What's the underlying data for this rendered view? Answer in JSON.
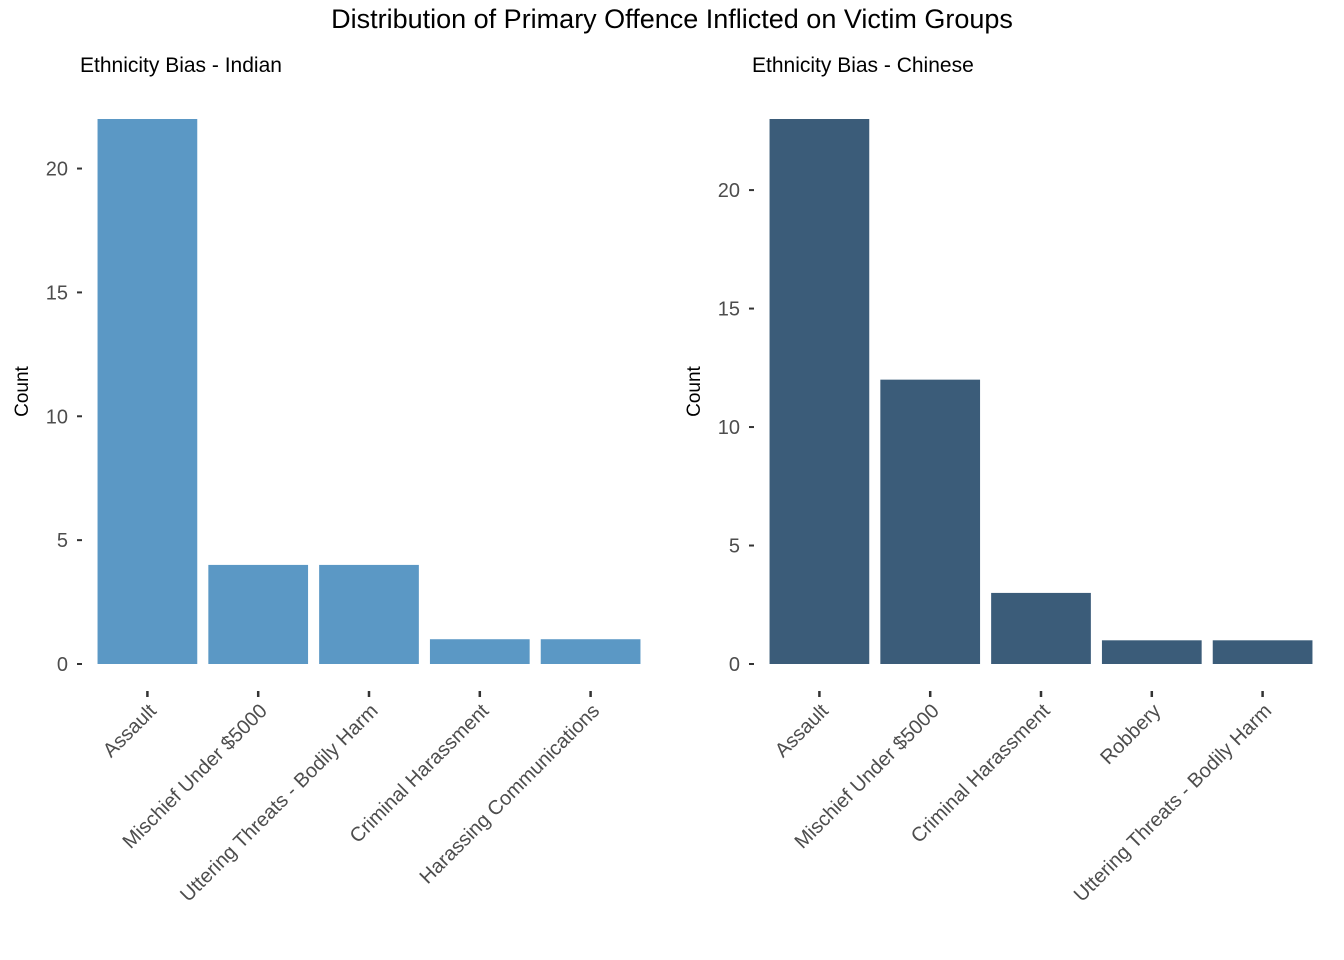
{
  "title": "Distribution of Primary Offence Inflicted on Victim Groups",
  "chart_data": [
    {
      "type": "bar",
      "title": "Ethnicity Bias - Indian",
      "xlabel": "",
      "ylabel": "Count",
      "categories": [
        "Assault",
        "Mischief Under $5000",
        "Uttering Threats - Bodily Harm",
        "Criminal Harassment",
        "Harassing Communications"
      ],
      "values": [
        22,
        4,
        4,
        1,
        1
      ],
      "ylim": [
        0,
        22
      ],
      "yticks": [
        0,
        5,
        10,
        15,
        20
      ],
      "color": "#5b98c5",
      "grid": false
    },
    {
      "type": "bar",
      "title": "Ethnicity Bias - Chinese",
      "xlabel": "",
      "ylabel": "Count",
      "categories": [
        "Assault",
        "Mischief Under $5000",
        "Criminal Harassment",
        "Robbery",
        "Uttering Threats - Bodily Harm"
      ],
      "values": [
        23,
        12,
        3,
        1,
        1
      ],
      "ylim": [
        0,
        23
      ],
      "yticks": [
        0,
        5,
        10,
        15,
        20
      ],
      "color": "#3b5c79",
      "grid": false
    }
  ]
}
